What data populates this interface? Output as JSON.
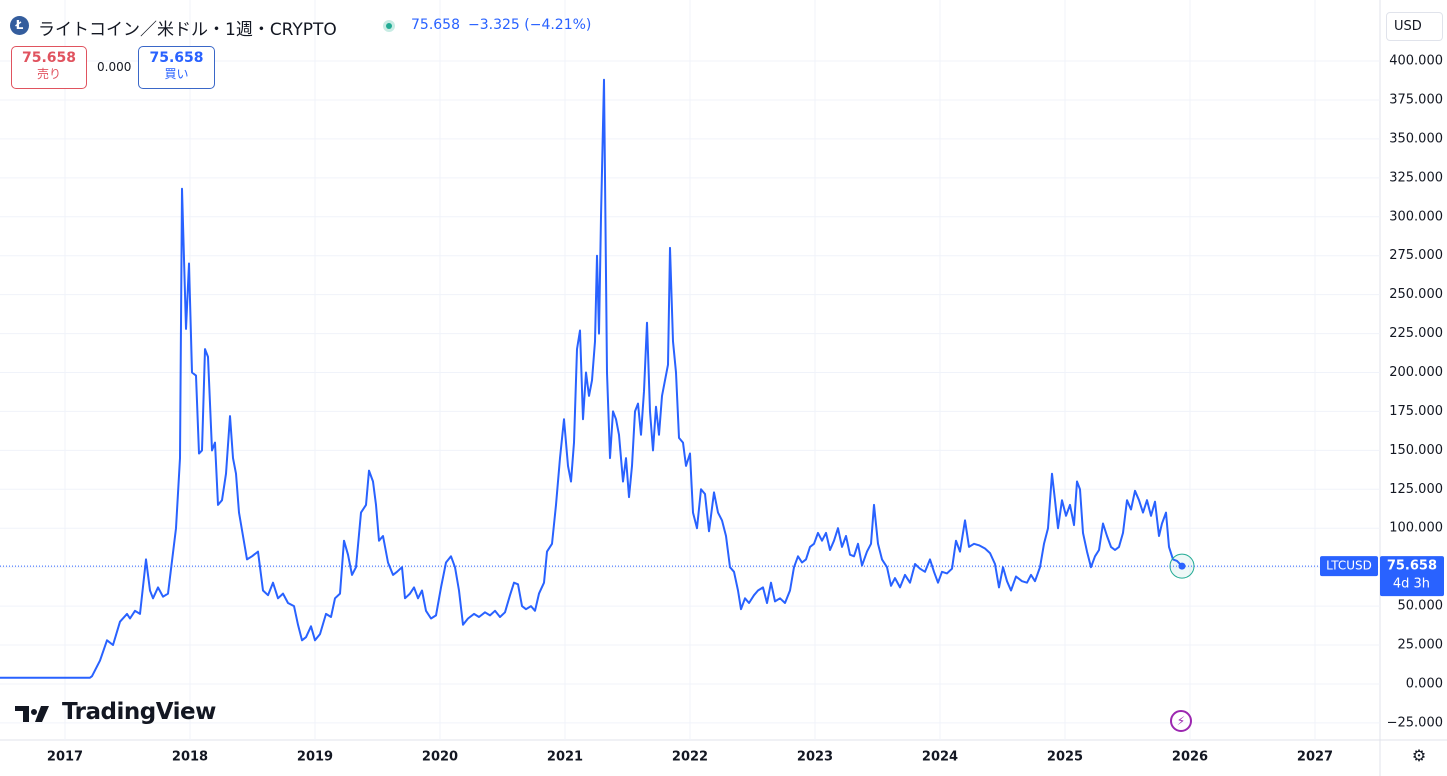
{
  "header": {
    "title": "ライトコイン／米ドル・1週・CRYPTO",
    "price": "75.658",
    "change": "−3.325 (−4.21%)",
    "sell": {
      "price": "75.658",
      "label": "売り"
    },
    "spread": "0.000",
    "buy": {
      "price": "75.658",
      "label": "買い"
    },
    "currency": "USD",
    "logo": "TradingView"
  },
  "chart_data": {
    "type": "line",
    "series": [
      {
        "name": "LTCUSD",
        "color": "#2962ff",
        "x": [
          2016.48,
          2017.2,
          2017.216,
          2017.28,
          2017.336,
          2017.384,
          2017.44,
          2017.496,
          2017.52,
          2017.56,
          2017.6,
          2017.648,
          2017.68,
          2017.704,
          2017.744,
          2017.784,
          2017.824,
          2017.888,
          2017.92,
          2017.936,
          2017.968,
          2017.992,
          2018.016,
          2018.048,
          2018.072,
          2018.096,
          2018.12,
          2018.144,
          2018.176,
          2018.2,
          2018.224,
          2018.256,
          2018.288,
          2018.32,
          2018.344,
          2018.368,
          2018.392,
          2018.424,
          2018.456,
          2018.496,
          2018.544,
          2018.584,
          2018.624,
          2018.664,
          2018.704,
          2018.744,
          2018.784,
          2018.832,
          2018.864,
          2018.896,
          2018.928,
          2018.968,
          2019.0,
          2019.04,
          2019.088,
          2019.128,
          2019.16,
          2019.2,
          2019.232,
          2019.264,
          2019.296,
          2019.328,
          2019.368,
          2019.408,
          2019.432,
          2019.464,
          2019.488,
          2019.512,
          2019.544,
          2019.584,
          2019.624,
          2019.656,
          2019.696,
          2019.72,
          2019.76,
          2019.792,
          2019.824,
          2019.856,
          2019.888,
          2019.928,
          2019.968,
          2020.008,
          2020.048,
          2020.088,
          2020.12,
          2020.152,
          2020.184,
          2020.224,
          2020.272,
          2020.312,
          2020.36,
          2020.4,
          2020.44,
          2020.48,
          2020.52,
          2020.56,
          2020.592,
          2020.624,
          2020.656,
          2020.688,
          2020.728,
          2020.76,
          2020.792,
          2020.832,
          2020.856,
          2020.896,
          2020.928,
          2020.96,
          2020.992,
          2021.024,
          2021.048,
          2021.072,
          2021.096,
          2021.12,
          2021.144,
          2021.168,
          2021.192,
          2021.216,
          2021.24,
          2021.256,
          2021.272,
          2021.288,
          2021.312,
          2021.336,
          2021.36,
          2021.384,
          2021.408,
          2021.432,
          2021.464,
          2021.488,
          2021.512,
          2021.536,
          2021.56,
          2021.584,
          2021.608,
          2021.632,
          2021.656,
          2021.68,
          2021.704,
          2021.728,
          2021.752,
          2021.776,
          2021.8,
          2021.824,
          2021.84,
          2021.864,
          2021.888,
          2021.912,
          2021.944,
          2021.968,
          2022.0,
          2022.024,
          2022.056,
          2022.088,
          2022.12,
          2022.152,
          2022.192,
          2022.224,
          2022.256,
          2022.288,
          2022.32,
          2022.352,
          2022.384,
          2022.408,
          2022.44,
          2022.472,
          2022.512,
          2022.544,
          2022.584,
          2022.616,
          2022.648,
          2022.68,
          2022.72,
          2022.76,
          2022.8,
          2022.832,
          2022.864,
          2022.896,
          2022.928,
          2022.96,
          2022.992,
          2023.024,
          2023.056,
          2023.088,
          2023.12,
          2023.152,
          2023.184,
          2023.216,
          2023.248,
          2023.28,
          2023.312,
          2023.344,
          2023.376,
          2023.416,
          2023.448,
          2023.472,
          2023.504,
          2023.536,
          2023.576,
          2023.608,
          2023.64,
          2023.68,
          2023.72,
          2023.76,
          2023.8,
          2023.84,
          2023.88,
          2023.92,
          2023.952,
          2023.984,
          2024.016,
          2024.056,
          2024.096,
          2024.128,
          2024.16,
          2024.2,
          2024.232,
          2024.272,
          2024.312,
          2024.36,
          2024.4,
          2024.44,
          2024.472,
          2024.504,
          2024.536,
          2024.568,
          2024.608,
          2024.656,
          2024.696,
          2024.728,
          2024.76,
          2024.8,
          2024.832,
          2024.864,
          2024.896,
          2024.92,
          2024.944,
          2024.976,
          2025.008,
          2025.04,
          2025.072,
          2025.096,
          2025.12,
          2025.144,
          2025.176,
          2025.208,
          2025.24,
          2025.272,
          2025.304,
          2025.336,
          2025.368,
          2025.4,
          2025.432,
          2025.464,
          2025.496,
          2025.528,
          2025.56,
          2025.592,
          2025.624,
          2025.656,
          2025.688,
          2025.72,
          2025.752,
          2025.776,
          2025.808,
          2025.832,
          2025.864,
          2025.896,
          2025.936
        ],
        "values": [
          4,
          4,
          5,
          15,
          28,
          25,
          40,
          45,
          42,
          47,
          45,
          80,
          60,
          55,
          62,
          56,
          58,
          100,
          145,
          318,
          228,
          270,
          200,
          198,
          148,
          150,
          215,
          210,
          150,
          155,
          115,
          118,
          135,
          172,
          145,
          135,
          110,
          95,
          80,
          82,
          85,
          60,
          57,
          65,
          55,
          58,
          52,
          50,
          38,
          28,
          30,
          37,
          28,
          32,
          45,
          43,
          55,
          58,
          92,
          83,
          70,
          75,
          110,
          115,
          137,
          130,
          115,
          92,
          95,
          78,
          70,
          72,
          75,
          55,
          58,
          62,
          55,
          60,
          47,
          42,
          44,
          62,
          78,
          82,
          75,
          60,
          38,
          42,
          45,
          43,
          46,
          44,
          47,
          43,
          46,
          57,
          65,
          64,
          50,
          48,
          50,
          47,
          58,
          65,
          85,
          90,
          115,
          145,
          170,
          140,
          130,
          155,
          215,
          227,
          170,
          200,
          185,
          195,
          220,
          275,
          225,
          300,
          388,
          200,
          145,
          175,
          170,
          160,
          130,
          145,
          120,
          140,
          175,
          180,
          160,
          188,
          232,
          175,
          150,
          178,
          160,
          185,
          195,
          205,
          280,
          220,
          200,
          158,
          155,
          140,
          148,
          110,
          100,
          125,
          122,
          98,
          123,
          110,
          105,
          95,
          75,
          72,
          60,
          48,
          55,
          52,
          57,
          60,
          62,
          52,
          65,
          53,
          55,
          52,
          60,
          75,
          82,
          78,
          80,
          88,
          90,
          97,
          92,
          97,
          86,
          92,
          100,
          88,
          95,
          83,
          82,
          90,
          76,
          85,
          90,
          115,
          90,
          80,
          75,
          63,
          68,
          62,
          70,
          65,
          77,
          74,
          72,
          80,
          72,
          65,
          72,
          71,
          74,
          92,
          85,
          105,
          88,
          90,
          89,
          87,
          84,
          77,
          62,
          75,
          66,
          60,
          69,
          66,
          65,
          70,
          66,
          75,
          90,
          100,
          135,
          118,
          100,
          118,
          108,
          115,
          102,
          130,
          125,
          97,
          85,
          75,
          82,
          86,
          103,
          95,
          88,
          86,
          88,
          97,
          118,
          112,
          124,
          118,
          110,
          118,
          108,
          117,
          95,
          103,
          110,
          88,
          80,
          79,
          75.658
        ]
      }
    ],
    "xlim": [
      2016.48,
      2027.52
    ],
    "xticks": [
      2017,
      2018,
      2019,
      2020,
      2021,
      2022,
      2023,
      2024,
      2025,
      2026,
      2027
    ],
    "ylim": [
      -36,
      436
    ],
    "yticks": [
      {
        "value": -25,
        "label": "−25.000"
      },
      {
        "value": 0,
        "label": "0.000"
      },
      {
        "value": 25,
        "label": "25.000"
      },
      {
        "value": 50,
        "label": "50.000"
      },
      {
        "value": 75,
        "label": "75.000"
      },
      {
        "value": 100,
        "label": "100.000"
      },
      {
        "value": 125,
        "label": "125.000"
      },
      {
        "value": 150,
        "label": "150.000"
      },
      {
        "value": 175,
        "label": "175.000"
      },
      {
        "value": 200,
        "label": "200.000"
      },
      {
        "value": 225,
        "label": "225.000"
      },
      {
        "value": 250,
        "label": "250.000"
      },
      {
        "value": 275,
        "label": "275.000"
      },
      {
        "value": 300,
        "label": "300.000"
      },
      {
        "value": 325,
        "label": "325.000"
      },
      {
        "value": 350,
        "label": "350.000"
      },
      {
        "value": 375,
        "label": "375.000"
      },
      {
        "value": 400,
        "label": "400.000"
      }
    ],
    "grid": true,
    "last_label": {
      "value": 75.658,
      "countdown": "4d 3h"
    }
  }
}
